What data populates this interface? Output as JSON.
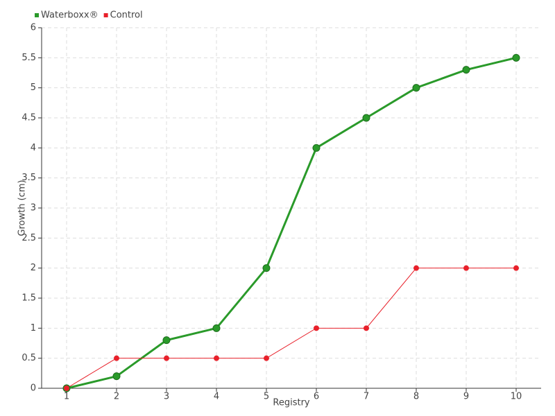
{
  "chart_data": {
    "type": "line",
    "x_label": "Registry",
    "y_label": "Growth (cm)",
    "x": [
      1,
      2,
      3,
      4,
      5,
      6,
      7,
      8,
      9,
      10
    ],
    "xlim": [
      0.5,
      10.5
    ],
    "xticks": [
      1,
      2,
      3,
      4,
      5,
      6,
      7,
      8,
      9,
      10
    ],
    "ylim": [
      0,
      6
    ],
    "yticks": [
      0,
      0.5,
      1,
      1.5,
      2,
      2.5,
      3,
      3.5,
      4,
      4.5,
      5,
      5.5,
      6
    ],
    "grid": true,
    "legend": "top-left",
    "series": [
      {
        "name": "Waterboxx®",
        "color": "#2a9a2a",
        "values": [
          0,
          0.2,
          0.8,
          1,
          2,
          4,
          4.5,
          5,
          5.3,
          5.5
        ]
      },
      {
        "name": "Control",
        "color": "#e8202a",
        "values": [
          0,
          0.5,
          0.5,
          0.5,
          0.5,
          1,
          1,
          2,
          2,
          2
        ]
      }
    ]
  }
}
